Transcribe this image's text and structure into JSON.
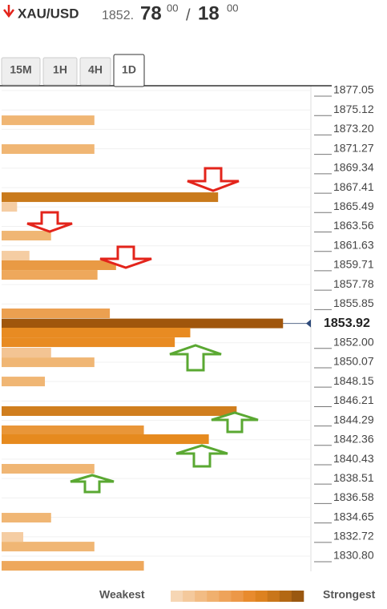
{
  "chart_data": {
    "type": "confluence",
    "symbol": "XAU/USD",
    "bid_main": "1852.",
    "bid_big": "78",
    "bid_small": "00",
    "separator": "/",
    "ask_big": "18",
    "ask_small": "00",
    "tabs": [
      "15M",
      "1H",
      "4H",
      "1D"
    ],
    "active_tab": 3,
    "ylim": [
      1829.29,
      1877.53
    ],
    "xlim": [
      0,
      100
    ],
    "yticks": [
      1877.05,
      1875.12,
      {
        "value": 1873.2,
        "label": "1873.20"
      },
      1871.27,
      1869.34,
      1867.41,
      1865.49,
      1863.56,
      1861.63,
      1859.71,
      1857.78,
      1855.85,
      {
        "value": 1852,
        "label": "1852.00"
      },
      1850.07,
      1848.15,
      1846.21,
      1844.29,
      1842.36,
      1840.43,
      1838.51,
      1836.58,
      1834.65,
      1832.72,
      {
        "value": 1830.8,
        "label": "1830.80"
      }
    ],
    "current_price": 1853.92,
    "levels": [
      1874.1,
      1871.24,
      1866.46,
      1865.5,
      1862.64,
      1860.65,
      1859.7,
      1858.74,
      1854.92,
      1853.92,
      1853.01,
      1852.05,
      1851.02,
      1850.06,
      1848.15,
      1845.21,
      1843.3,
      1842.42,
      1839.48,
      1834.62,
      1832.71,
      1831.75,
      1829.84
    ],
    "values": [
      30,
      30,
      70,
      5,
      16,
      9,
      37,
      31,
      35,
      91,
      61,
      56,
      16,
      30,
      14,
      76,
      46,
      67,
      30,
      16,
      7,
      30,
      46
    ],
    "colors": [
      "#f0b674",
      "#f0b674",
      "#c97a1c",
      "#f5cda3",
      "#f0b674",
      "#f5cda3",
      "#e99a44",
      "#eea85c",
      "#eca050",
      "#a0560c",
      "#e88b22",
      "#e88b22",
      "#f3c493",
      "#f0b674",
      "#f0b674",
      "#d07e1e",
      "#e99638",
      "#e68a1e",
      "#f0b674",
      "#f0b674",
      "#f5cda3",
      "#f0b674",
      "#eea85c"
    ],
    "legend_weak": "Weakest",
    "legend_strong": "Strongest",
    "legend_colors": [
      "#f6d6b4",
      "#f4c99c",
      "#f2bc84",
      "#f0b06e",
      "#eea35a",
      "#ec9848",
      "#e88b2e",
      "#dd8220",
      "#c9761a",
      "#b36814",
      "#9a5810"
    ]
  }
}
